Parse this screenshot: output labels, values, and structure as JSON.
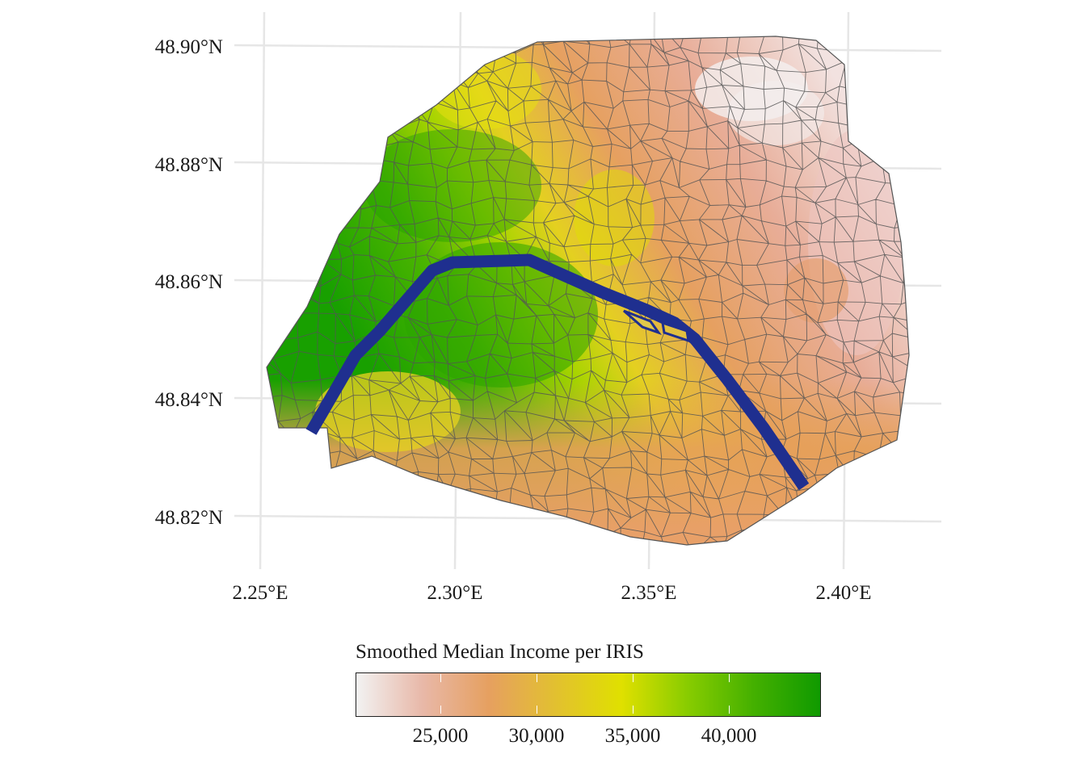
{
  "map": {
    "axes": {
      "lon_labels": [
        "2.25°E",
        "2.30°E",
        "2.35°E",
        "2.40°E"
      ],
      "lat_labels": [
        "48.90°N",
        "48.88°N",
        "48.86°N",
        "48.84°N",
        "48.82°N"
      ]
    },
    "colors": {
      "grid": "#e6e6e6",
      "boundary": "#555555",
      "seine": "#1f2f8f",
      "scale": [
        "#f2f2f2",
        "#e8b8a8",
        "#e6a060",
        "#e2c030",
        "#e0e000",
        "#88cc00",
        "#44b000",
        "#109a00"
      ]
    }
  },
  "legend": {
    "title": "Smoothed Median Income per IRIS",
    "labels": [
      "25,000",
      "30,000",
      "35,000",
      "40,000"
    ]
  }
}
